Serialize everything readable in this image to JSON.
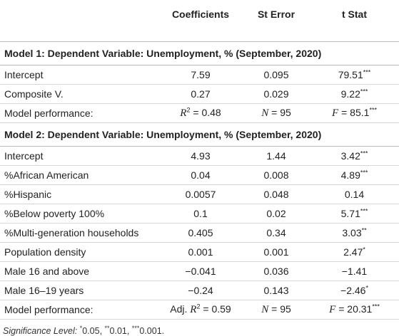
{
  "table": {
    "columns": [
      "Coefficients",
      "St Error",
      "t Stat"
    ],
    "sections": [
      {
        "title": "Model 1: Dependent Variable: Unemployment, % (September, 2020)",
        "rows": [
          {
            "label": "Intercept",
            "coefficient": "7.59",
            "st_error": "0.095",
            "t_stat": "79.51",
            "sig": "***"
          },
          {
            "label": "Composite V.",
            "coefficient": "0.27",
            "st_error": "0.029",
            "t_stat": "9.22",
            "sig": "***"
          }
        ],
        "performance": {
          "label": "Model performance:",
          "coefficient": {
            "math": "R",
            "sup": "2",
            "text": "= 0.48"
          },
          "st_error": {
            "math": "N",
            "text": "= 95"
          },
          "t_stat": {
            "math": "F",
            "text": "= 85.1",
            "post_sup": "***"
          }
        }
      },
      {
        "title": "Model 2: Dependent Variable: Unemployment, % (September, 2020)",
        "rows": [
          {
            "label": "Intercept",
            "coefficient": "4.93",
            "st_error": "1.44",
            "t_stat": "3.42",
            "sig": "***"
          },
          {
            "label": "%African American",
            "coefficient": "0.04",
            "st_error": "0.008",
            "t_stat": "4.89",
            "sig": "***"
          },
          {
            "label": "%Hispanic",
            "coefficient": "0.0057",
            "st_error": "0.048",
            "t_stat": "0.14"
          },
          {
            "label": "%Below poverty 100%",
            "coefficient": "0.1",
            "st_error": "0.02",
            "t_stat": "5.71",
            "sig": "***"
          },
          {
            "label": "%Multi-generation households",
            "coefficient": "0.405",
            "st_error": "0.34",
            "t_stat": "3.03",
            "sig": "**"
          },
          {
            "label": "Population density",
            "coefficient": "0.001",
            "st_error": "0.001",
            "t_stat": "2.47",
            "sig": "*"
          },
          {
            "label": "Male 16 and above",
            "coefficient": "−0.041",
            "st_error": "0.036",
            "t_stat": "−1.41"
          },
          {
            "label": "Male 16–19 years",
            "coefficient": "−0.24",
            "st_error": "0.143",
            "t_stat": "−2.46",
            "sig": "*"
          }
        ],
        "performance": {
          "label": "Model performance:",
          "coefficient": {
            "prefix": "Adj.",
            "math": "R",
            "sup": "2",
            "text": "= 0.59"
          },
          "st_error": {
            "math": "N",
            "text": "= 95"
          },
          "t_stat": {
            "math": "F",
            "text": "= 20.31",
            "post_sup": "***"
          }
        }
      }
    ],
    "footnote": {
      "label": "Significance Level:",
      "levels": [
        {
          "stars": "*",
          "value": "0.05,"
        },
        {
          "stars": "**",
          "value": "0.01,"
        },
        {
          "stars": "***",
          "value": "0.001."
        }
      ]
    }
  }
}
